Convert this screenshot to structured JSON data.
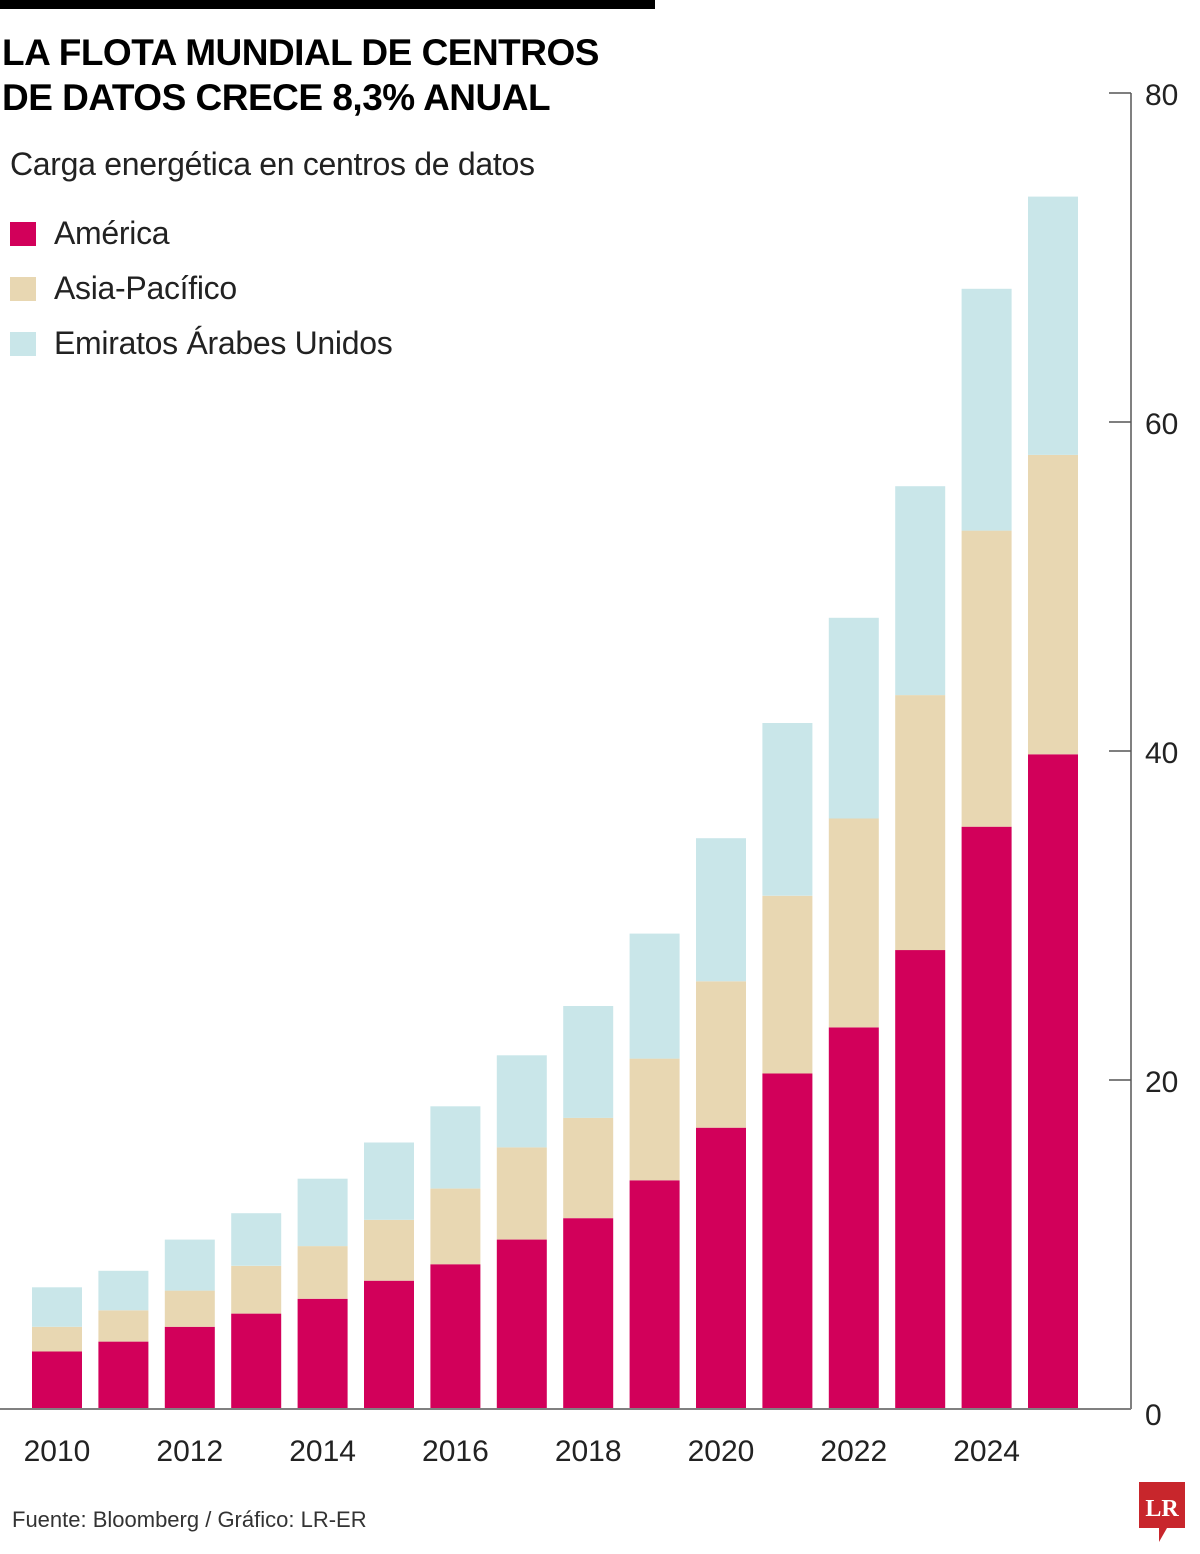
{
  "header": {
    "title_line1": "LA FLOTA MUNDIAL DE CENTROS",
    "title_line2": "DE DATOS CRECE 8,3% ANUAL",
    "subtitle": "Carga energética en centros de datos"
  },
  "legend": [
    {
      "label": "América",
      "color": "#D2005A"
    },
    {
      "label": "Asia-Pacífico",
      "color": "#E8D7B2"
    },
    {
      "label": "Emiratos Árabes Unidos",
      "color": "#C9E6E9"
    }
  ],
  "footer": {
    "source": "Fuente: Bloomberg / Gráfico: LR-ER",
    "logo_text": "LR",
    "logo_color": "#C8262C"
  },
  "chart_data": {
    "type": "bar",
    "stacked": true,
    "title": "LA FLOTA MUNDIAL DE CENTROS DE DATOS CRECE 8,3% ANUAL",
    "subtitle": "Carga energética en centros de datos",
    "xlabel": "",
    "ylabel": "",
    "categories": [
      "2010",
      "2011",
      "2012",
      "2013",
      "2014",
      "2015",
      "2016",
      "2017",
      "2018",
      "2019",
      "2020",
      "2021",
      "2022",
      "2023",
      "2024",
      "2025"
    ],
    "x_tick_labels": [
      "2010",
      "2012",
      "2014",
      "2016",
      "2018",
      "2020",
      "2022",
      "2024"
    ],
    "y_ticks": [
      0,
      20,
      40,
      60,
      80
    ],
    "ylim": [
      0,
      80
    ],
    "y_axis_side": "right",
    "grid": false,
    "legend_position": "top-left",
    "series": [
      {
        "name": "América",
        "color": "#D2005A",
        "values": [
          3.5,
          4.1,
          5.0,
          5.8,
          6.7,
          7.8,
          8.8,
          10.3,
          11.6,
          13.9,
          17.1,
          20.4,
          23.2,
          27.9,
          35.4,
          39.8
        ]
      },
      {
        "name": "Asia-Pacífico",
        "color": "#E8D7B2",
        "values": [
          1.5,
          1.9,
          2.2,
          2.9,
          3.2,
          3.7,
          4.6,
          5.6,
          6.1,
          7.4,
          8.9,
          10.8,
          12.7,
          15.5,
          18.0,
          18.2
        ]
      },
      {
        "name": "Emiratos Árabes Unidos",
        "color": "#C9E6E9",
        "values": [
          2.4,
          2.4,
          3.1,
          3.2,
          4.1,
          4.7,
          5.0,
          5.6,
          6.8,
          7.6,
          8.7,
          10.5,
          12.2,
          12.7,
          14.7,
          15.7
        ]
      }
    ]
  }
}
